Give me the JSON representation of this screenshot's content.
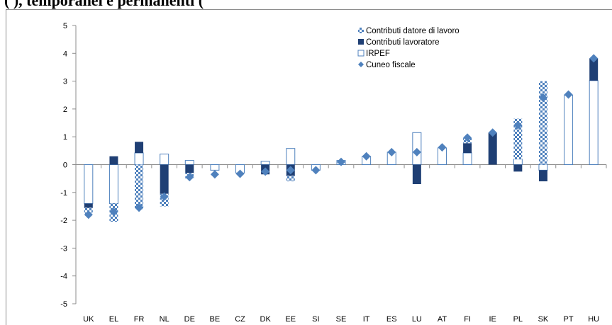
{
  "heading": "(                                                              ), temporanei e permanenti (",
  "chart_data": {
    "type": "bar",
    "stacked": true,
    "categories": [
      "UK",
      "EL",
      "FR",
      "NL",
      "DE",
      "BE",
      "CZ",
      "DK",
      "EE",
      "SI",
      "SE",
      "IT",
      "ES",
      "LU",
      "AT",
      "FI",
      "IE",
      "PL",
      "SK",
      "PT",
      "HU"
    ],
    "ylim": [
      -5,
      5
    ],
    "yticks": [
      5,
      4,
      3,
      2,
      1,
      0,
      -1,
      -2,
      -3,
      -4,
      -5
    ],
    "grid": false,
    "legend_position": "top-right",
    "series": [
      {
        "name": "Contributi datore di lavoro",
        "kind": "bar",
        "pattern": "checker",
        "color": "#4f81bd",
        "values": [
          -0.25,
          -0.65,
          -1.6,
          -0.45,
          -0.2,
          0,
          0,
          0,
          -0.2,
          0,
          0,
          0,
          0,
          0,
          0,
          0.2,
          0,
          1.45,
          3.0,
          0,
          0
        ]
      },
      {
        "name": "Contributi lavoratore",
        "kind": "bar",
        "pattern": "solid",
        "color": "#1f3f74",
        "values": [
          -0.15,
          0.3,
          0.4,
          -1.05,
          -0.3,
          0,
          0,
          -0.35,
          -0.4,
          0,
          0,
          0,
          0,
          -0.7,
          0,
          0.35,
          1.15,
          -0.25,
          -0.4,
          0,
          0.8
        ]
      },
      {
        "name": "IRPEF",
        "kind": "bar",
        "pattern": "outline",
        "color": "#4f81bd",
        "values": [
          -1.4,
          -1.4,
          0.42,
          0.38,
          0.15,
          -0.2,
          -0.3,
          0.12,
          0.58,
          -0.2,
          0.15,
          0.3,
          0.45,
          1.15,
          0.6,
          0.42,
          0,
          0.2,
          -0.2,
          2.5,
          3.02
        ]
      },
      {
        "name": "Cuneo fiscale",
        "kind": "marker",
        "color": "#4f81bd",
        "values": [
          -1.8,
          -1.7,
          -1.55,
          -1.15,
          -0.45,
          -0.35,
          -0.33,
          -0.25,
          -0.2,
          -0.2,
          0.1,
          0.3,
          0.45,
          0.45,
          0.62,
          0.97,
          1.15,
          1.42,
          2.4,
          2.52,
          3.82
        ]
      }
    ]
  }
}
